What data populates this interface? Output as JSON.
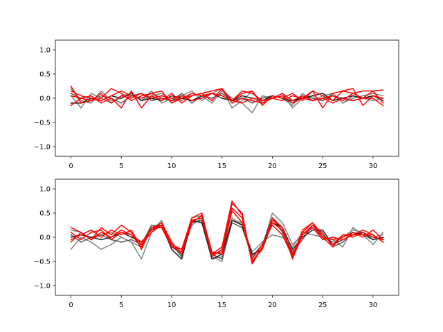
{
  "chart_data": [
    {
      "type": "line",
      "xlim": [
        -1.55,
        32.55
      ],
      "ylim": [
        -1.2,
        1.2
      ],
      "x_ticks": [
        "0",
        "5",
        "10",
        "15",
        "20",
        "25",
        "30"
      ],
      "y_ticks": [
        "1.0",
        "0.5",
        "0.0",
        "−0.5",
        "−1.0"
      ],
      "x_tick_values": [
        0,
        5,
        10,
        15,
        20,
        25,
        30
      ],
      "y_tick_values": [
        1.0,
        0.5,
        0.0,
        -0.5,
        -1.0
      ],
      "series": [
        {
          "color": "#808080",
          "values": [
            0.2,
            -0.05,
            -0.1,
            0.15,
            -0.05,
            0.0,
            0.1,
            -0.05,
            0.05,
            0.1,
            -0.1,
            0.05,
            0.15,
            -0.05,
            0.1,
            0.2,
            -0.2,
            -0.05,
            0.15,
            -0.1,
            0.05,
            0.0,
            -0.15,
            0.1,
            -0.05,
            0.05,
            0.1,
            -0.1,
            0.0,
            0.05,
            0.1,
            0.05
          ]
        },
        {
          "color": "#808080",
          "values": [
            0.05,
            -0.2,
            0.1,
            0.0,
            -0.1,
            0.05,
            0.1,
            -0.05,
            0.15,
            -0.1,
            0.0,
            -0.05,
            0.1,
            0.05,
            -0.1,
            0.15,
            0.0,
            -0.1,
            -0.3,
            0.05,
            0.0,
            0.1,
            -0.2,
            0.0,
            0.05,
            -0.05,
            0.1,
            -0.1,
            0.05,
            0.0,
            -0.05,
            0.0
          ]
        },
        {
          "color": "#555555",
          "values": [
            0.1,
            0.0,
            -0.05,
            0.05,
            0.0,
            -0.1,
            0.05,
            0.1,
            -0.05,
            0.0,
            -0.05,
            0.1,
            -0.1,
            0.05,
            0.0,
            0.1,
            -0.05,
            0.0,
            -0.1,
            0.0,
            0.05,
            0.0,
            -0.1,
            0.05,
            0.0,
            -0.05,
            0.05,
            0.0,
            -0.05,
            0.0,
            0.05,
            0.0
          ]
        },
        {
          "color": "#222222",
          "values": [
            -0.1,
            -0.1,
            0.0,
            -0.05,
            0.05,
            0.0,
            0.1,
            -0.05,
            0.0,
            -0.05,
            0.05,
            0.0,
            -0.05,
            0.05,
            0.1,
            0.0,
            -0.05,
            0.05,
            0.0,
            -0.05,
            0.05,
            0.0,
            -0.05,
            0.0,
            0.05,
            0.1,
            -0.05,
            0.0,
            0.05,
            0.0,
            0.05,
            -0.05
          ]
        },
        {
          "color": "#ff0000",
          "values": [
            0.25,
            -0.1,
            -0.05,
            0.0,
            0.2,
            0.1,
            -0.05,
            0.05,
            0.1,
            0.15,
            -0.1,
            0.0,
            0.05,
            0.1,
            0.15,
            0.2,
            -0.05,
            0.1,
            0.15,
            -0.15,
            0.05,
            0.0,
            0.1,
            -0.05,
            0.15,
            0.05,
            -0.05,
            0.15,
            0.2,
            -0.15,
            0.05,
            0.0
          ]
        },
        {
          "color": "#ff0000",
          "values": [
            -0.15,
            0.0,
            0.05,
            -0.1,
            0.0,
            -0.2,
            0.15,
            -0.2,
            0.05,
            -0.05,
            0.1,
            -0.1,
            0.05,
            0.1,
            -0.05,
            0.2,
            -0.1,
            0.0,
            -0.05,
            -0.1,
            0.0,
            0.05,
            -0.1,
            0.0,
            0.15,
            -0.2,
            0.1,
            0.15,
            0.1,
            0.0,
            0.15,
            -0.1
          ]
        },
        {
          "color": "#ff0000",
          "values": [
            0.05,
            0.0,
            -0.05,
            0.1,
            -0.1,
            0.05,
            0.0,
            0.1,
            0.0,
            0.05,
            0.0,
            0.05,
            -0.05,
            0.0,
            0.1,
            0.05,
            -0.05,
            -0.1,
            0.0,
            -0.05,
            0.0,
            0.1,
            -0.05,
            0.05,
            -0.05,
            0.0,
            0.05,
            -0.05,
            0.1,
            0.15,
            0.15,
            0.17
          ]
        },
        {
          "color": "#ff0000",
          "values": [
            0.15,
            0.05,
            0.0,
            -0.05,
            0.05,
            0.15,
            0.05,
            0.0,
            0.1,
            0.0,
            -0.05,
            0.0,
            0.1,
            0.05,
            0.1,
            0.05,
            -0.05,
            0.15,
            0.1,
            -0.05,
            0.0,
            -0.05,
            0.05,
            0.0,
            -0.05,
            0.0,
            -0.1,
            0.0,
            -0.05,
            0.0,
            0.0,
            -0.15
          ]
        }
      ]
    },
    {
      "type": "line",
      "xlim": [
        -1.55,
        32.55
      ],
      "ylim": [
        -1.2,
        1.2
      ],
      "x_ticks": [
        "0",
        "5",
        "10",
        "15",
        "20",
        "25",
        "30"
      ],
      "y_ticks": [
        "1.0",
        "0.5",
        "0.0",
        "−0.5",
        "−1.0"
      ],
      "x_tick_values": [
        0,
        5,
        10,
        15,
        20,
        25,
        30
      ],
      "y_tick_values": [
        1.0,
        0.5,
        0.0,
        -0.5,
        -1.0
      ],
      "series": [
        {
          "color": "#808080",
          "values": [
            -0.25,
            0.0,
            -0.1,
            -0.25,
            -0.15,
            0.0,
            -0.1,
            -0.45,
            0.1,
            0.35,
            -0.25,
            -0.45,
            0.4,
            0.45,
            -0.45,
            -0.4,
            0.4,
            0.25,
            -0.3,
            -0.1,
            0.05,
            0.0,
            -0.2,
            0.1,
            0.05,
            0.0,
            -0.05,
            -0.2,
            0.2,
            0.05,
            -0.15,
            0.1
          ]
        },
        {
          "color": "#808080",
          "values": [
            0.15,
            0.1,
            -0.05,
            0.05,
            0.1,
            0.0,
            -0.1,
            -0.2,
            0.2,
            0.3,
            -0.2,
            -0.35,
            0.25,
            0.4,
            -0.4,
            -0.5,
            0.35,
            0.3,
            -0.5,
            -0.2,
            0.5,
            0.3,
            -0.15,
            0.05,
            0.2,
            0.0,
            -0.1,
            0.0,
            0.15,
            0.1,
            0.0,
            0.05
          ]
        },
        {
          "color": "#555555",
          "values": [
            0.05,
            -0.1,
            0.0,
            0.05,
            -0.05,
            -0.1,
            -0.05,
            -0.15,
            0.25,
            0.2,
            -0.15,
            -0.4,
            0.3,
            0.35,
            -0.35,
            -0.45,
            0.3,
            0.2,
            -0.4,
            -0.15,
            0.4,
            0.1,
            -0.3,
            -0.05,
            0.25,
            0.1,
            -0.2,
            -0.1,
            0.1,
            0.05,
            -0.05,
            0.0
          ]
        },
        {
          "color": "#222222",
          "values": [
            0.0,
            0.05,
            0.0,
            -0.05,
            0.0,
            0.1,
            0.0,
            -0.1,
            0.15,
            0.25,
            -0.25,
            -0.45,
            0.35,
            0.3,
            -0.45,
            -0.35,
            0.35,
            0.25,
            -0.35,
            -0.25,
            0.3,
            0.2,
            -0.25,
            0.0,
            0.15,
            0.15,
            -0.15,
            -0.05,
            0.05,
            0.1,
            -0.05,
            0.0
          ]
        },
        {
          "color": "#ff0000",
          "values": [
            0.2,
            0.1,
            -0.05,
            0.2,
            0.05,
            0.25,
            0.1,
            -0.15,
            0.1,
            0.25,
            -0.2,
            -0.25,
            0.35,
            0.4,
            -0.4,
            -0.25,
            0.7,
            0.5,
            -0.55,
            -0.2,
            0.35,
            0.2,
            -0.4,
            0.15,
            0.3,
            0.05,
            -0.15,
            0.05,
            0.05,
            0.15,
            0.05,
            -0.1
          ]
        },
        {
          "color": "#ff0000",
          "values": [
            -0.05,
            0.05,
            0.15,
            0.0,
            0.15,
            0.05,
            0.15,
            -0.25,
            0.2,
            0.2,
            -0.2,
            -0.3,
            0.3,
            0.45,
            -0.35,
            -0.3,
            0.6,
            0.4,
            -0.5,
            -0.25,
            0.4,
            0.2,
            -0.45,
            0.05,
            0.25,
            0.0,
            -0.05,
            0.0,
            0.1,
            0.0,
            0.15,
            -0.05
          ]
        },
        {
          "color": "#ff0000",
          "values": [
            -0.1,
            0.1,
            -0.05,
            0.1,
            0.0,
            0.15,
            0.05,
            -0.2,
            0.2,
            0.25,
            -0.15,
            -0.25,
            0.4,
            0.5,
            -0.35,
            -0.2,
            0.75,
            0.45,
            -0.55,
            -0.2,
            0.3,
            0.15,
            -0.35,
            0.1,
            0.3,
            0.0,
            -0.2,
            0.05,
            0.0,
            0.1,
            0.0,
            -0.05
          ]
        },
        {
          "color": "#ff0000",
          "values": [
            0.1,
            -0.05,
            0.1,
            0.15,
            -0.05,
            0.1,
            0.05,
            -0.1,
            0.15,
            0.3,
            -0.1,
            -0.35,
            0.3,
            0.45,
            -0.3,
            -0.35,
            0.55,
            0.3,
            -0.45,
            -0.15,
            0.25,
            0.05,
            -0.4,
            0.05,
            0.2,
            -0.05,
            0.0,
            -0.05,
            0.05,
            0.05,
            0.05,
            -0.1
          ]
        }
      ]
    }
  ]
}
